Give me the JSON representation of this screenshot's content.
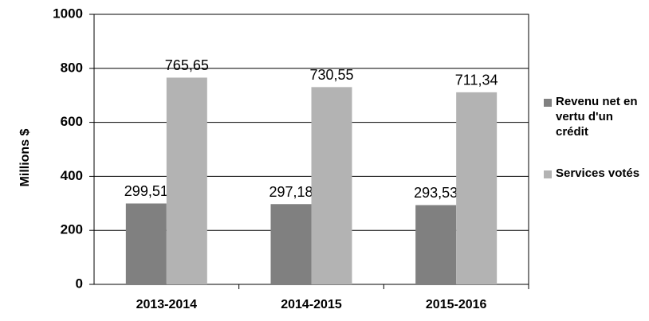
{
  "chart_data": {
    "type": "bar",
    "y_label": "Millions $",
    "categories": [
      "2013-2014",
      "2014-2015",
      "2015-2016"
    ],
    "series": [
      {
        "name": "Revenu net en vertu d'un crédit",
        "color": "#808080",
        "values": [
          299.51,
          297.18,
          293.53
        ],
        "value_labels": [
          "299,51",
          "297,18",
          "293,53"
        ]
      },
      {
        "name": "Services votés",
        "color": "#b3b3b3",
        "values": [
          765.65,
          730.55,
          711.34
        ],
        "value_labels": [
          "765,65",
          "730,55",
          "711,34"
        ]
      }
    ],
    "ylim": [
      0,
      1000
    ],
    "yticks": [
      0,
      200,
      400,
      600,
      800,
      1000
    ],
    "grid": true,
    "legend": "right"
  }
}
